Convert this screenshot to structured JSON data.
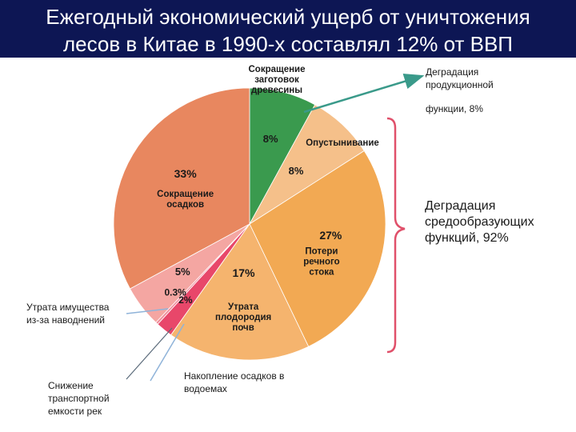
{
  "title": {
    "line1": "Ежегодный экономический ущерб от уничтожения",
    "line2": "лесов в Китае в 1990-х составлял 12% от ВВП"
  },
  "annotations": {
    "productive": [
      "Деградация",
      "продукционной",
      "функции, 8%"
    ],
    "environmental": [
      "Деградация",
      "средообразующих",
      "функций, 92%"
    ],
    "property": [
      "Утрата имущества",
      "из-за наводнений"
    ],
    "transport": [
      "Снижение",
      "транспортной",
      "емкости рек"
    ],
    "sediment": [
      "Накопление осадков в",
      "водоемах"
    ]
  },
  "chart_data": {
    "type": "pie",
    "slices": [
      {
        "name": "Сокращение заготовок древесины",
        "label_lines": [
          "Сокращение",
          "заготовок",
          "древесины"
        ],
        "value": 8,
        "value_label": "8%",
        "color": "#3a9a4e"
      },
      {
        "name": "Опустынивание",
        "label_lines": [
          "Опустынивание"
        ],
        "value": 8,
        "value_label": "8%",
        "color": "#f5c08a"
      },
      {
        "name": "Потери речного стока",
        "label_lines": [
          "Потери",
          "речного",
          "стока"
        ],
        "value": 27,
        "value_label": "27%",
        "color": "#f2a953"
      },
      {
        "name": "Утрата плодородия почв",
        "label_lines": [
          "Утрата",
          "плодородия",
          "почв"
        ],
        "value": 17,
        "value_label": "17%",
        "color": "#f5b46e"
      },
      {
        "name": "",
        "label_lines": [],
        "value": 2,
        "value_label": "2%",
        "color": "#e8476a"
      },
      {
        "name": "",
        "label_lines": [],
        "value": 0.3,
        "value_label": "0.3%",
        "color": "#f08f9c"
      },
      {
        "name": "",
        "label_lines": [],
        "value": 5,
        "value_label": "5%",
        "color": "#f4a6a2"
      },
      {
        "name": "Сокращение осадков",
        "label_lines": [
          "Сокращение",
          "осадков"
        ],
        "value": 33,
        "value_label": "33%",
        "color": "#e8875f"
      }
    ]
  }
}
